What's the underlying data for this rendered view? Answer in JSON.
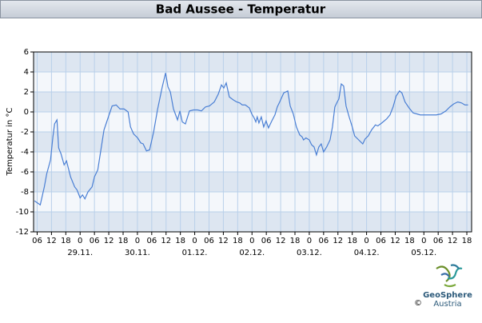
{
  "chart_data": {
    "type": "line",
    "title": "Bad Aussee - Temperatur",
    "y_label": "Temperatur in °C",
    "color": "#4a7fd4",
    "grid": true,
    "xlim": [
      4.5,
      188
    ],
    "ylim": [
      -12,
      6
    ],
    "yticks": [
      -12,
      -10,
      -8,
      -6,
      -4,
      -2,
      0,
      2,
      4,
      6
    ],
    "xticks": [
      {
        "value": 6,
        "label": "06"
      },
      12,
      18,
      {
        "value": 24,
        "label": "0"
      },
      {
        "value": 30,
        "label": "06"
      },
      {
        "value": 36,
        "label": "12"
      },
      {
        "value": 42,
        "label": "18"
      },
      {
        "value": 48,
        "label": "0"
      },
      {
        "value": 54,
        "label": "06"
      },
      {
        "value": 60,
        "label": "12"
      },
      {
        "value": 66,
        "label": "18"
      },
      {
        "value": 72,
        "label": "0"
      },
      {
        "value": 78,
        "label": "06"
      },
      {
        "value": 84,
        "label": "12"
      },
      {
        "value": 90,
        "label": "18"
      },
      {
        "value": 96,
        "label": "0"
      },
      {
        "value": 102,
        "label": "06"
      },
      {
        "value": 108,
        "label": "12"
      },
      {
        "value": 114,
        "label": "18"
      },
      {
        "value": 120,
        "label": "0"
      },
      {
        "value": 126,
        "label": "06"
      },
      {
        "value": 132,
        "label": "12"
      },
      {
        "value": 138,
        "label": "18"
      },
      {
        "value": 144,
        "label": "0"
      },
      {
        "value": 150,
        "label": "06"
      },
      {
        "value": 156,
        "label": "12"
      },
      {
        "value": 162,
        "label": "18"
      },
      {
        "value": 168,
        "label": "0"
      },
      {
        "value": 174,
        "label": "06"
      },
      {
        "value": 180,
        "label": "12"
      },
      {
        "value": 186,
        "label": "18"
      }
    ],
    "x_date_labels": [
      {
        "value": 24,
        "label": "29.11."
      },
      {
        "value": 48,
        "label": "30.11."
      },
      {
        "value": 72,
        "label": "01.12."
      },
      {
        "value": 96,
        "label": "02.12."
      },
      {
        "value": 120,
        "label": "03.12."
      },
      {
        "value": 144,
        "label": "04.12."
      },
      {
        "value": 168,
        "label": "05.12."
      }
    ],
    "x": [
      4.9,
      7.3,
      9.0,
      10.0,
      11.6,
      12.6,
      13.3,
      14.3,
      15.0,
      16.0,
      17.3,
      18.3,
      20.0,
      21.7,
      22.7,
      24.0,
      25.0,
      26.0,
      27.3,
      29.0,
      30.0,
      31.4,
      32.7,
      34.0,
      35.7,
      37.4,
      39.1,
      40.7,
      42.4,
      44.1,
      45.1,
      46.4,
      48.1,
      49.4,
      50.4,
      51.8,
      53.1,
      54.8,
      56.4,
      58.4,
      59.8,
      60.8,
      61.8,
      63.1,
      64.8,
      65.8,
      66.8,
      68.1,
      69.8,
      71.5,
      73.2,
      74.8,
      76.5,
      78.2,
      80.2,
      81.9,
      83.2,
      84.2,
      85.2,
      86.5,
      88.2,
      89.6,
      90.9,
      91.9,
      93.2,
      94.9,
      95.9,
      96.9,
      97.6,
      98.2,
      98.9,
      99.9,
      100.9,
      101.9,
      102.9,
      104.3,
      105.6,
      106.6,
      107.6,
      109.3,
      111.0,
      112.0,
      113.3,
      114.6,
      116.0,
      117.0,
      117.6,
      118.6,
      120.0,
      121.0,
      122.0,
      123.0,
      124.0,
      125.0,
      126.0,
      127.3,
      128.7,
      129.7,
      130.7,
      131.7,
      132.4,
      133.4,
      134.4,
      135.4,
      136.7,
      138.0,
      139.0,
      140.7,
      142.4,
      143.4,
      144.7,
      146.1,
      147.7,
      148.7,
      150.4,
      152.4,
      153.8,
      155.1,
      156.4,
      157.8,
      158.8,
      160.1,
      161.8,
      163.5,
      165.1,
      166.5,
      167.8,
      171.2,
      173.2,
      175.2,
      177.2,
      178.9,
      180.5,
      182.2,
      183.8,
      185.2,
      186.5
    ],
    "values": [
      -8.9,
      -9.3,
      -7.5,
      -6.2,
      -4.8,
      -2.5,
      -1.2,
      -0.8,
      -3.6,
      -4.2,
      -5.3,
      -4.9,
      -6.5,
      -7.5,
      -7.8,
      -8.6,
      -8.3,
      -8.7,
      -8.0,
      -7.5,
      -6.5,
      -5.8,
      -3.8,
      -1.8,
      -0.6,
      0.6,
      0.7,
      0.3,
      0.3,
      0,
      -1.5,
      -2.2,
      -2.6,
      -3.1,
      -3.2,
      -3.9,
      -3.8,
      -2.0,
      0.2,
      2.5,
      3.9,
      2.5,
      2.0,
      0.3,
      -0.8,
      0.1,
      -1.0,
      -1.2,
      0.1,
      0.2,
      0.2,
      0.1,
      0.5,
      0.6,
      1.0,
      1.8,
      2.7,
      2.4,
      2.9,
      1.5,
      1.2,
      1.0,
      0.9,
      0.7,
      0.7,
      0.4,
      -0.2,
      -0.6,
      -1.0,
      -0.5,
      -1.1,
      -0.5,
      -1.5,
      -0.9,
      -1.6,
      -0.9,
      -0.3,
      0.5,
      1.0,
      1.9,
      2.1,
      0.6,
      -0.2,
      -1.5,
      -2.3,
      -2.5,
      -2.8,
      -2.6,
      -2.8,
      -3.3,
      -3.5,
      -4.3,
      -3.5,
      -3.2,
      -4.0,
      -3.5,
      -2.8,
      -1.5,
      0.5,
      1.0,
      1.3,
      2.8,
      2.6,
      0.6,
      -0.5,
      -1.5,
      -2.4,
      -2.8,
      -3.2,
      -2.7,
      -2.4,
      -1.8,
      -1.3,
      -1.4,
      -1.1,
      -0.7,
      -0.3,
      0.5,
      1.6,
      2.1,
      1.9,
      1.0,
      0.4,
      -0.1,
      -0.2,
      -0.3,
      -0.3,
      -0.3,
      -0.3,
      -0.2,
      0.1,
      0.5,
      0.8,
      1.0,
      0.9,
      0.7,
      0.7
    ]
  },
  "logo": {
    "name": "GeoSphere",
    "country": "Austria",
    "copyright": "©"
  }
}
